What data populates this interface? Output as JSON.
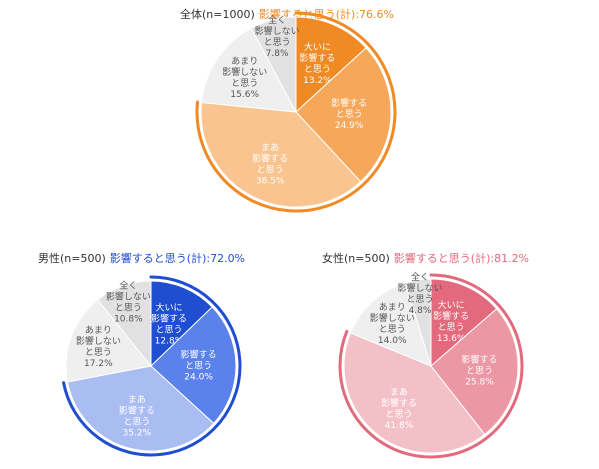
{
  "chart_data": [
    {
      "type": "pie",
      "title": "全体(n=1000)",
      "subtitle": "影響すると思う(計):76.6%",
      "categories": [
        "大いに影響すると思う",
        "影響すると思う",
        "まあ影響すると思う",
        "あまり影響しないと思う",
        "全く影響しないと思う"
      ],
      "values": [
        13.2,
        24.9,
        38.5,
        15.6,
        7.8
      ],
      "labels": [
        [
          "大いに",
          "影響する",
          "と思う",
          "13.2%"
        ],
        [
          "影響する",
          "と思う",
          "24.9%"
        ],
        [
          "まあ",
          "影響する",
          "と思う",
          "38.5%"
        ],
        [
          "あまり",
          "影響しない",
          "と思う",
          "15.6%"
        ],
        [
          "全く",
          "影響しない",
          "と思う",
          "7.8%"
        ]
      ],
      "colors": [
        "#f08a24",
        "#f5a75a",
        "#f9c48f",
        "#efefef",
        "#e1e1e1"
      ],
      "label_colors": [
        "#ffffff",
        "#ffffff",
        "#ffffff",
        "#555555",
        "#555555"
      ],
      "accent": "#f08a24"
    },
    {
      "type": "pie",
      "title": "男性(n=500)",
      "subtitle": "影響すると思う(計):72.0%",
      "categories": [
        "大いに影響すると思う",
        "影響すると思う",
        "まあ影響すると思う",
        "あまり影響しないと思う",
        "全く影響しないと思う"
      ],
      "values": [
        12.8,
        24.0,
        35.2,
        17.2,
        10.8
      ],
      "labels": [
        [
          "大いに",
          "影響する",
          "と思う",
          "12.8%"
        ],
        [
          "影響する",
          "と思う",
          "24.0%"
        ],
        [
          "まあ",
          "影響する",
          "と思う",
          "35.2%"
        ],
        [
          "あまり",
          "影響しない",
          "と思う",
          "17.2%"
        ],
        [
          "全く",
          "影響しない",
          "と思う",
          "10.8%"
        ]
      ],
      "colors": [
        "#1f4fd0",
        "#5a82ea",
        "#a9bdf3",
        "#efefef",
        "#e1e1e1"
      ],
      "label_colors": [
        "#ffffff",
        "#ffffff",
        "#ffffff",
        "#555555",
        "#555555"
      ],
      "accent": "#1f4fd0"
    },
    {
      "type": "pie",
      "title": "女性(n=500)",
      "subtitle": "影響すると思う(計):81.2%",
      "categories": [
        "大いに影響すると思う",
        "影響すると思う",
        "まあ影響すると思う",
        "あまり影響しないと思う",
        "全く影響しないと思う"
      ],
      "values": [
        13.6,
        25.8,
        41.8,
        14.0,
        4.8
      ],
      "labels": [
        [
          "大いに",
          "影響する",
          "と思う",
          "13.6%"
        ],
        [
          "影響する",
          "と思う",
          "25.8%"
        ],
        [
          "まあ",
          "影響する",
          "と思う",
          "41.8%"
        ],
        [
          "あまり",
          "影響しない",
          "と思う",
          "14.0%"
        ],
        [
          "全く",
          "影響しない",
          "と思う",
          "4.8%"
        ]
      ],
      "colors": [
        "#e36a7c",
        "#ec97a4",
        "#f4c0c8",
        "#efefef",
        "#e1e1e1"
      ],
      "label_colors": [
        "#ffffff",
        "#ffffff",
        "#ffffff",
        "#555555",
        "#555555"
      ],
      "accent": "#e36a7c"
    }
  ]
}
